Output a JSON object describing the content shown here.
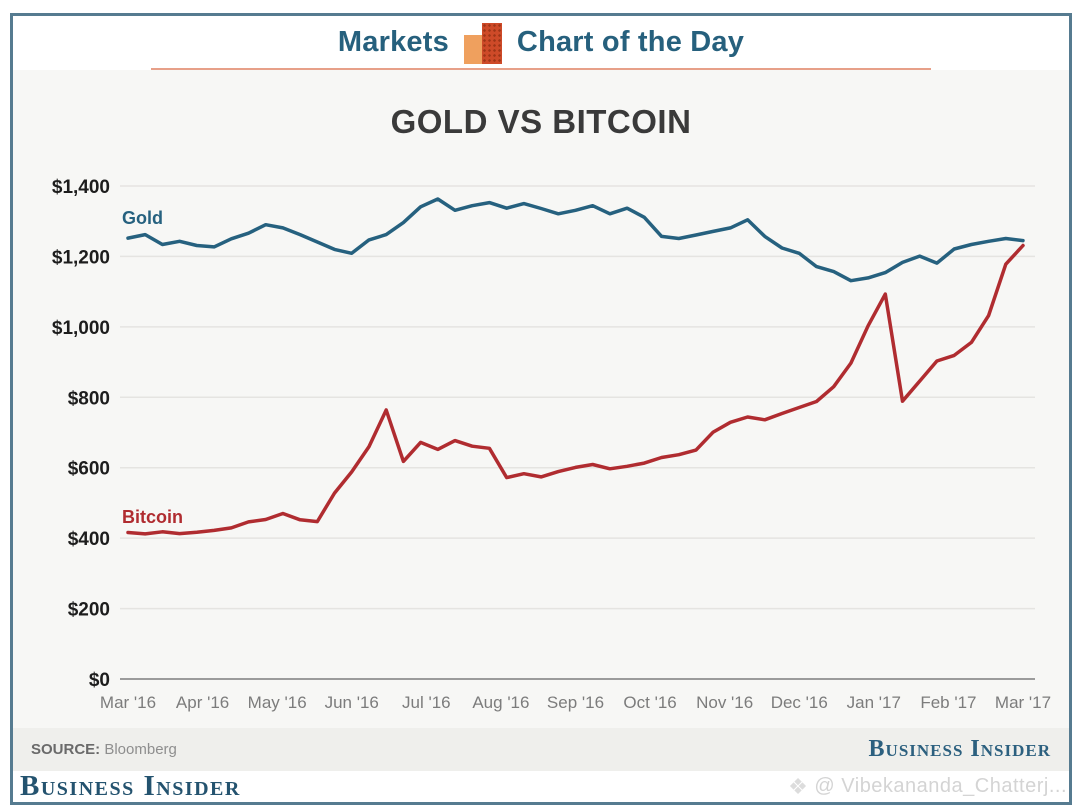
{
  "header": {
    "left": "Markets",
    "right": "Chart of the Day"
  },
  "title": "GOLD VS BITCOIN",
  "chart_data": {
    "type": "line",
    "title": "GOLD VS BITCOIN",
    "grid": true,
    "ylim": [
      0,
      1450
    ],
    "x_tick_labels": [
      "Mar '16",
      "Apr '16",
      "May '16",
      "Jun '16",
      "Jul '16",
      "Aug '16",
      "Sep '16",
      "Oct '16",
      "Nov '16",
      "Dec '16",
      "Jan '17",
      "Feb '17",
      "Mar '17"
    ],
    "y_tick_values": [
      0,
      200,
      400,
      600,
      800,
      1000,
      1200,
      1400
    ],
    "y_tick_labels": [
      "$0",
      "$200",
      "$400",
      "$600",
      "$800",
      "$1,000",
      "$1,200",
      "$1,400"
    ],
    "grid_color": "#e5e4e1",
    "axis_color": "#9b9b9b",
    "tick_label_color": "#7c7c7c",
    "value_label_color": "#1d1d1d",
    "x_unit": "weeks (Mar 2016 - Mar 2017)",
    "series": [
      {
        "name": "Gold",
        "color": "#26617f",
        "label": {
          "month": -0.08,
          "value": 1292
        },
        "values": [
          1252,
          1262,
          1234,
          1243,
          1231,
          1227,
          1250,
          1266,
          1290,
          1281,
          1262,
          1241,
          1220,
          1209,
          1247,
          1262,
          1296,
          1341,
          1363,
          1331,
          1344,
          1353,
          1337,
          1350,
          1336,
          1321,
          1331,
          1344,
          1321,
          1337,
          1311,
          1257,
          1251,
          1261,
          1271,
          1281,
          1304,
          1257,
          1224,
          1209,
          1171,
          1157,
          1131,
          1139,
          1154,
          1183,
          1201,
          1181,
          1221,
          1234,
          1243,
          1251,
          1245
        ]
      },
      {
        "name": "Bitcoin",
        "color": "#b02c30",
        "label": {
          "month": -0.08,
          "value": 443
        },
        "values": [
          416,
          412,
          418,
          413,
          417,
          422,
          429,
          446,
          453,
          470,
          452,
          447,
          528,
          588,
          660,
          764,
          618,
          672,
          652,
          677,
          661,
          655,
          572,
          583,
          574,
          589,
          601,
          609,
          597,
          604,
          613,
          629,
          637,
          650,
          701,
          729,
          744,
          736,
          754,
          771,
          788,
          830,
          897,
          1003,
          1093,
          789,
          846,
          903,
          919,
          956,
          1032,
          1178,
          1231
        ]
      }
    ]
  },
  "footer": {
    "source_label": "SOURCE:",
    "source_value": "Bloomberg",
    "strip_brand": "Business Insider",
    "bottom_brand": "Business Insider"
  },
  "watermark": {
    "icon": "diamond-icon",
    "text": "@ Vibekananda_Chatterj..."
  }
}
